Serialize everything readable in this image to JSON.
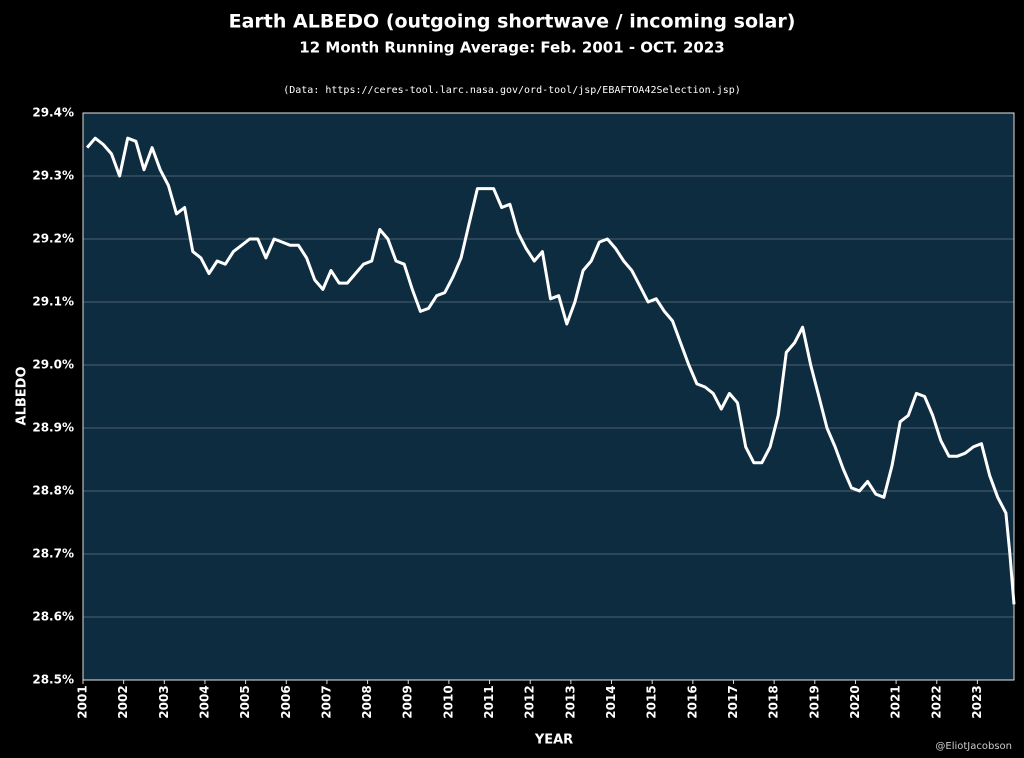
{
  "chart_data": {
    "type": "line",
    "title": "Earth ALBEDO (outgoing shortwave / incoming solar)",
    "subtitle": "12 Month Running Average: Feb. 2001 - OCT. 2023",
    "source": "(Data: https://ceres-tool.larc.nasa.gov/ord-tool/jsp/EBAFTOA42Selection.jsp)",
    "x_label": "YEAR",
    "y_label": "ALBEDO",
    "credit": "@EliotJacobson",
    "x": [
      2001.1,
      2001.3,
      2001.5,
      2001.7,
      2001.9,
      2002.1,
      2002.3,
      2002.5,
      2002.7,
      2002.9,
      2003.1,
      2003.3,
      2003.5,
      2003.7,
      2003.9,
      2004.1,
      2004.3,
      2004.5,
      2004.7,
      2004.9,
      2005.1,
      2005.3,
      2005.5,
      2005.7,
      2005.9,
      2006.1,
      2006.3,
      2006.5,
      2006.7,
      2006.9,
      2007.1,
      2007.3,
      2007.5,
      2007.7,
      2007.9,
      2008.1,
      2008.3,
      2008.5,
      2008.7,
      2008.9,
      2009.1,
      2009.3,
      2009.5,
      2009.7,
      2009.9,
      2010.1,
      2010.3,
      2010.5,
      2010.7,
      2010.9,
      2011.1,
      2011.3,
      2011.5,
      2011.7,
      2011.9,
      2012.1,
      2012.3,
      2012.5,
      2012.7,
      2012.9,
      2013.1,
      2013.3,
      2013.5,
      2013.7,
      2013.9,
      2014.1,
      2014.3,
      2014.5,
      2014.7,
      2014.9,
      2015.1,
      2015.3,
      2015.5,
      2015.7,
      2015.9,
      2016.1,
      2016.3,
      2016.5,
      2016.7,
      2016.9,
      2017.1,
      2017.3,
      2017.5,
      2017.7,
      2017.9,
      2018.1,
      2018.3,
      2018.5,
      2018.7,
      2018.9,
      2019.1,
      2019.3,
      2019.5,
      2019.7,
      2019.9,
      2020.1,
      2020.3,
      2020.5,
      2020.7,
      2020.9,
      2021.1,
      2021.3,
      2021.5,
      2021.7,
      2021.9,
      2022.1,
      2022.3,
      2022.5,
      2022.7,
      2022.9,
      2023.1,
      2023.3,
      2023.5,
      2023.7,
      2023.8,
      2023.9
    ],
    "series": [
      {
        "name": "ALBEDO",
        "color": "#ffffff",
        "values": [
          29.345,
          29.36,
          29.35,
          29.335,
          29.3,
          29.36,
          29.355,
          29.31,
          29.345,
          29.31,
          29.285,
          29.24,
          29.25,
          29.18,
          29.17,
          29.145,
          29.165,
          29.16,
          29.18,
          29.19,
          29.2,
          29.2,
          29.17,
          29.2,
          29.195,
          29.19,
          29.19,
          29.17,
          29.135,
          29.12,
          29.15,
          29.13,
          29.13,
          29.145,
          29.16,
          29.165,
          29.215,
          29.2,
          29.165,
          29.16,
          29.12,
          29.085,
          29.09,
          29.11,
          29.115,
          29.14,
          29.17,
          29.225,
          29.28,
          29.28,
          29.28,
          29.25,
          29.255,
          29.21,
          29.185,
          29.165,
          29.18,
          29.105,
          29.11,
          29.065,
          29.1,
          29.15,
          29.165,
          29.195,
          29.2,
          29.185,
          29.165,
          29.15,
          29.125,
          29.1,
          29.105,
          29.085,
          29.07,
          29.035,
          29.0,
          28.97,
          28.965,
          28.955,
          28.93,
          28.955,
          28.94,
          28.87,
          28.845,
          28.845,
          28.87,
          28.92,
          29.02,
          29.035,
          29.06,
          29.0,
          28.95,
          28.9,
          28.87,
          28.835,
          28.805,
          28.8,
          28.815,
          28.795,
          28.79,
          28.84,
          28.91,
          28.92,
          28.955,
          28.95,
          28.92,
          28.88,
          28.855,
          28.855,
          28.86,
          28.87,
          28.875,
          28.825,
          28.79,
          28.765,
          28.7,
          28.62
        ]
      }
    ],
    "xlim": [
      2001,
      2023.9
    ],
    "xticks": [
      2001,
      2002,
      2003,
      2004,
      2005,
      2006,
      2007,
      2008,
      2009,
      2010,
      2011,
      2012,
      2013,
      2014,
      2015,
      2016,
      2017,
      2018,
      2019,
      2020,
      2021,
      2022,
      2023
    ],
    "ylim": [
      28.5,
      29.4
    ],
    "yticks": [
      {
        "value": 28.5,
        "label": "28.5%"
      },
      {
        "value": 28.6,
        "label": "28.6%"
      },
      {
        "value": 28.7,
        "label": "28.7%"
      },
      {
        "value": 28.8,
        "label": "28.8%"
      },
      {
        "value": 28.9,
        "label": "28.9%"
      },
      {
        "value": 29.0,
        "label": "29.0%"
      },
      {
        "value": 29.1,
        "label": "29.1%"
      },
      {
        "value": 29.2,
        "label": "29.2%"
      },
      {
        "value": 29.3,
        "label": "29.3%"
      },
      {
        "value": 29.4,
        "label": "29.4%"
      }
    ],
    "grid": true,
    "background": "#0e2c40"
  }
}
